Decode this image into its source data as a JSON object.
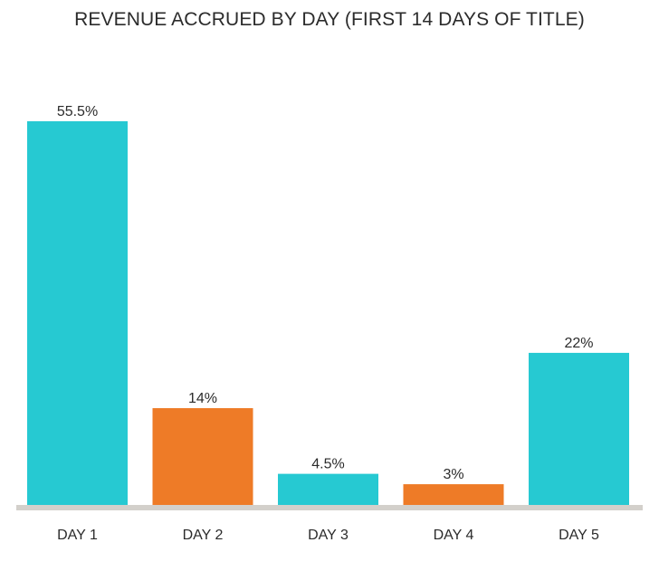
{
  "chart_data": {
    "type": "bar",
    "title": "REVENUE ACCRUED BY DAY (FIRST 14 DAYS OF TITLE)",
    "xlabel": "",
    "ylabel": "",
    "categories": [
      "DAY 1",
      "DAY 2",
      "DAY 3",
      "DAY 4",
      "DAY 5"
    ],
    "values": [
      55.5,
      14,
      4.5,
      3,
      22
    ],
    "value_labels": [
      "55.5%",
      "14%",
      "4.5%",
      "3%",
      "22%"
    ],
    "bar_colors": [
      "#26c9d2",
      "#ee7b27",
      "#26c9d2",
      "#ee7b27",
      "#26c9d2"
    ],
    "ylim": [
      0,
      55.5
    ],
    "grid": false,
    "legend": "none",
    "baseline_color": "#d3d0cb",
    "text_color": "#2b2b2b"
  }
}
